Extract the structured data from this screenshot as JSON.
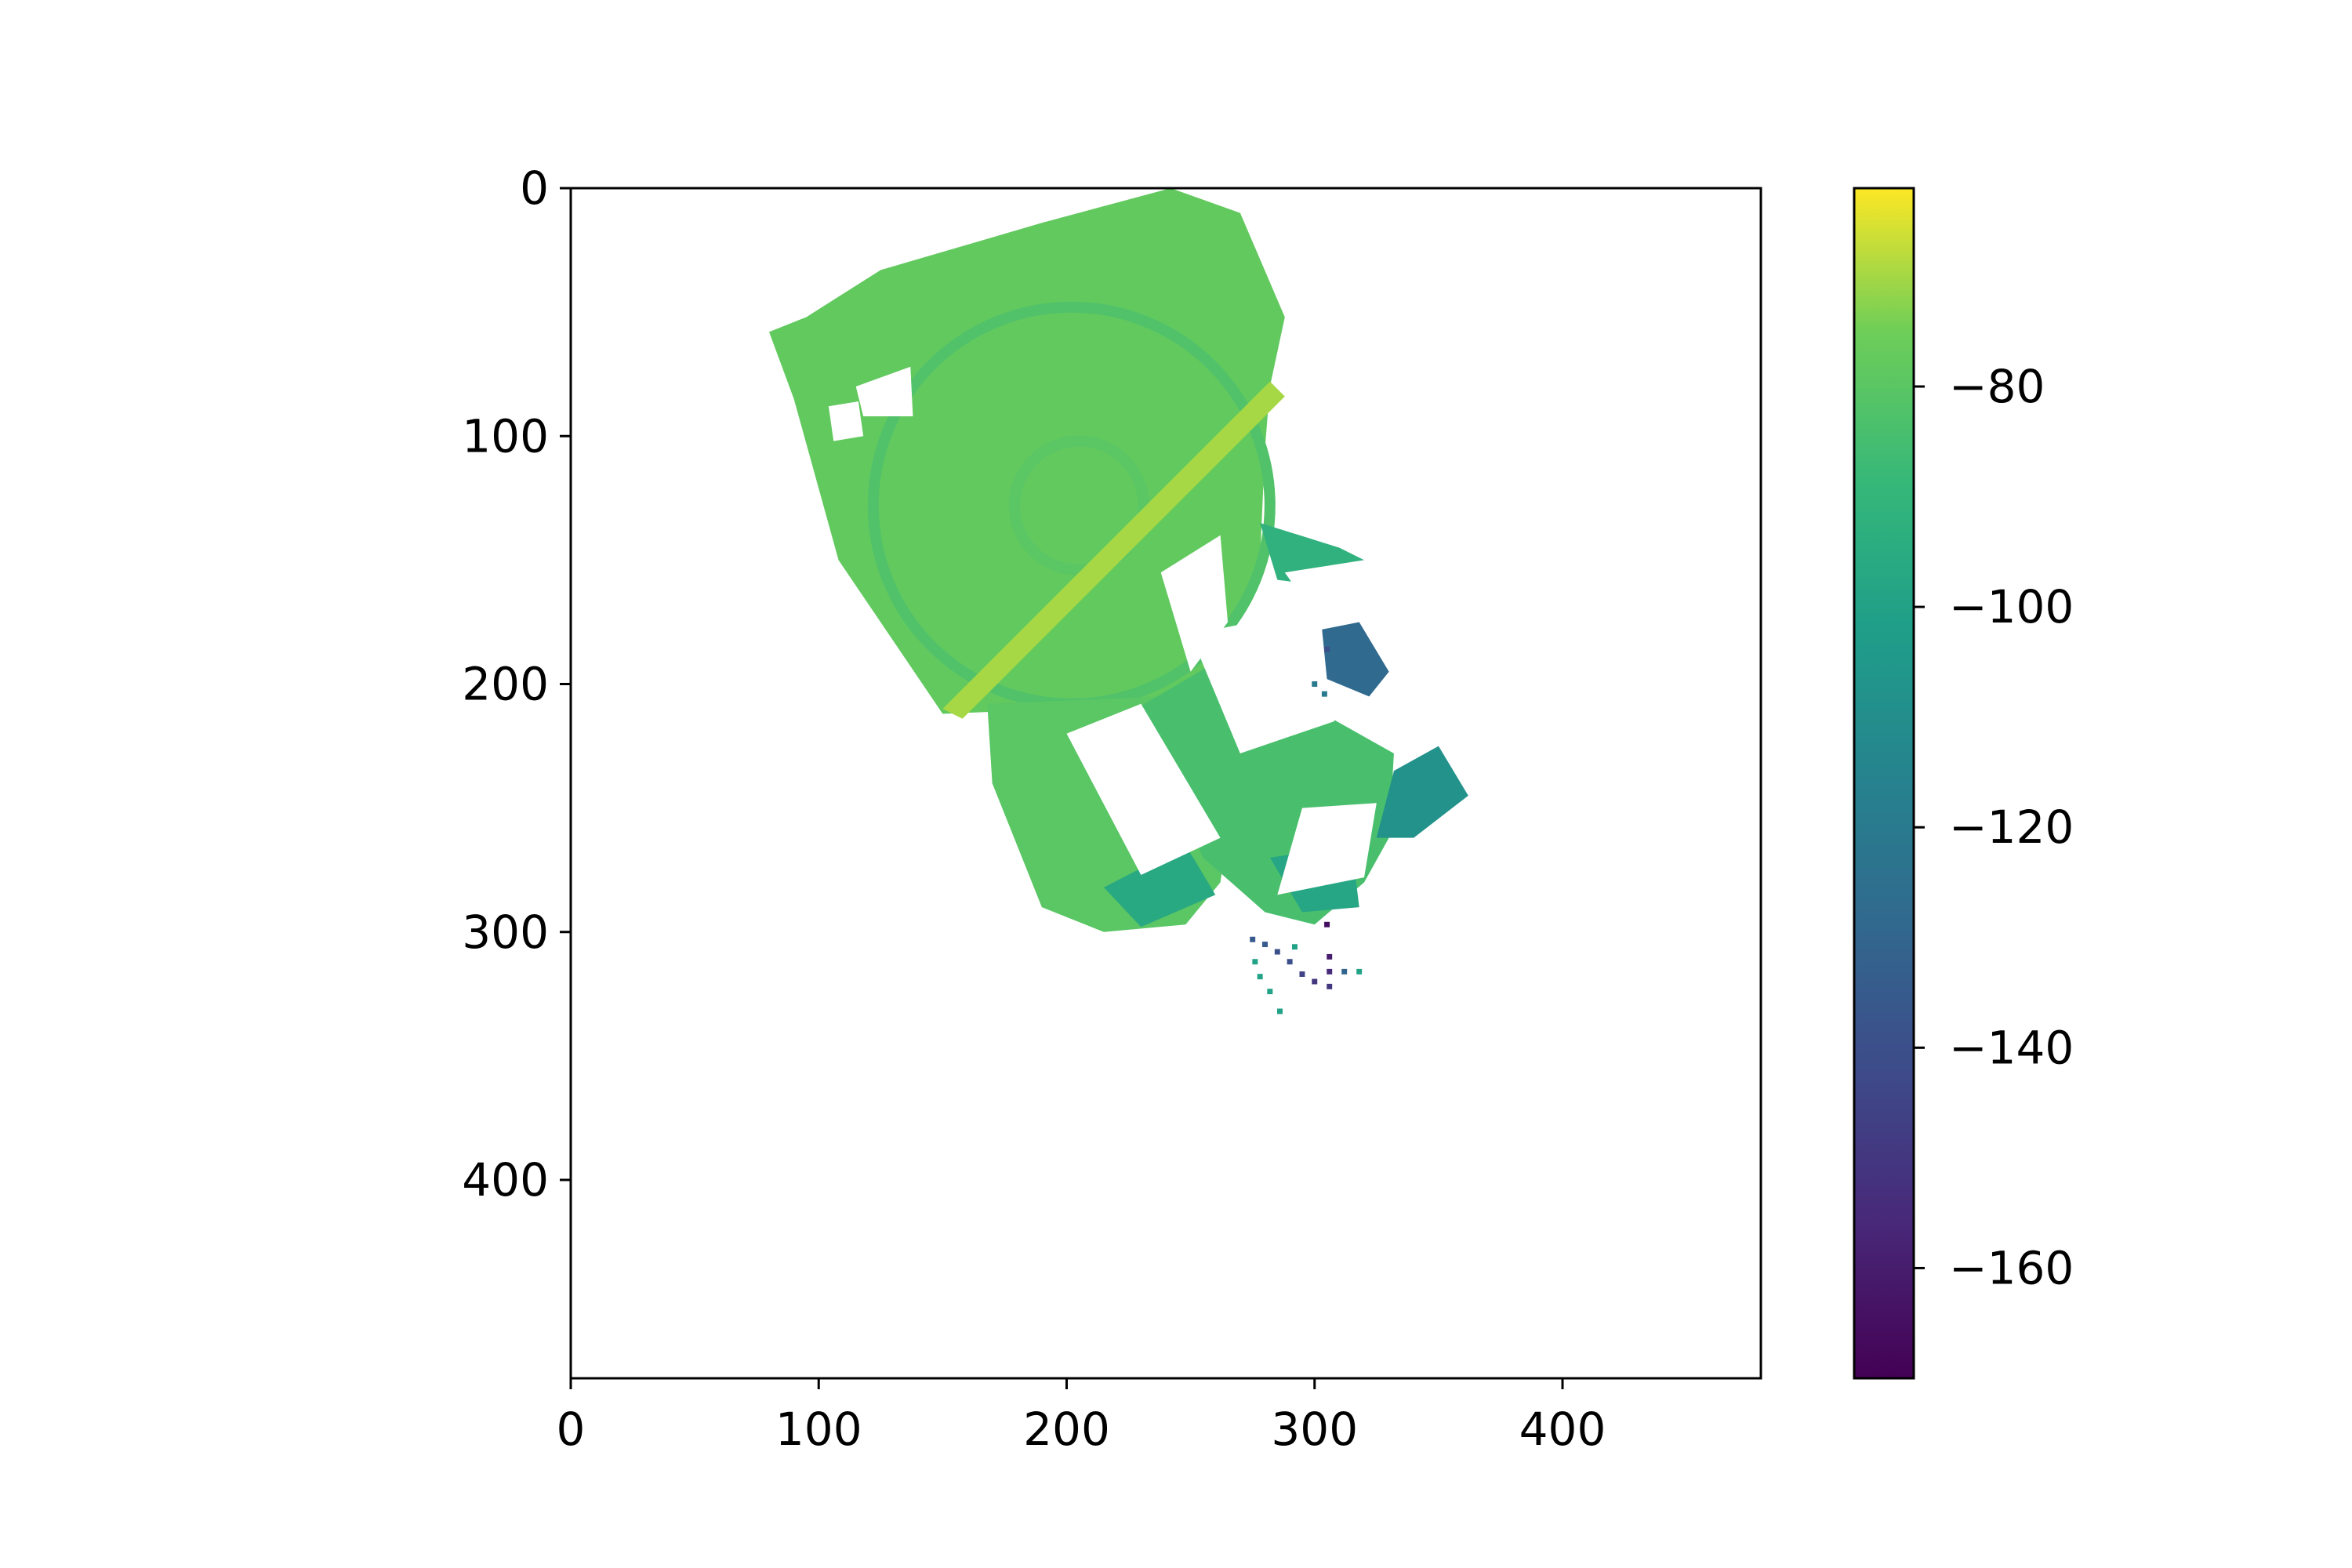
{
  "chart_data": {
    "type": "heatmap",
    "title": "",
    "xlabel": "",
    "ylabel": "",
    "xlim": [
      0,
      480
    ],
    "ylim": [
      480,
      0
    ],
    "x_ticks": [
      0,
      100,
      200,
      300,
      400
    ],
    "y_ticks": [
      0,
      100,
      200,
      300,
      400
    ],
    "x_tick_labels": [
      "0",
      "100",
      "200",
      "300",
      "400"
    ],
    "y_tick_labels": [
      "0",
      "100",
      "200",
      "300",
      "400"
    ],
    "grid": false,
    "colormap": "viridis",
    "colorbar": {
      "range": [
        -170,
        -62
      ],
      "ticks": [
        -80,
        -100,
        -120,
        -140,
        -160
      ],
      "tick_labels": [
        "−80",
        "−100",
        "−120",
        "−140",
        "−160"
      ]
    },
    "empty_value_color": "#ffffff",
    "regions": [
      {
        "name": "main-block",
        "value": -78,
        "polygon": [
          [
            242,
            0
          ],
          [
            270,
            10
          ],
          [
            288,
            52
          ],
          [
            282,
            80
          ],
          [
            280,
            105
          ],
          [
            278,
            150
          ],
          [
            268,
            172
          ],
          [
            248,
            208
          ],
          [
            222,
            218
          ],
          [
            198,
            210
          ],
          [
            150,
            212
          ],
          [
            108,
            150
          ],
          [
            90,
            85
          ],
          [
            80,
            58
          ],
          [
            95,
            52
          ],
          [
            125,
            33
          ],
          [
            190,
            14
          ]
        ]
      },
      {
        "name": "ring-outer",
        "value": -82,
        "ellipse": [
          202,
          128,
          80,
          80
        ]
      },
      {
        "name": "ring-inner",
        "value": -80,
        "ellipse": [
          205,
          128,
          26,
          26
        ]
      },
      {
        "name": "diagonal-band",
        "value": -70,
        "polygon": [
          [
            150,
            210
          ],
          [
            282,
            78
          ],
          [
            288,
            84
          ],
          [
            158,
            214
          ]
        ]
      },
      {
        "name": "lower-left-block",
        "value": -80,
        "polygon": [
          [
            168,
            208
          ],
          [
            240,
            205
          ],
          [
            268,
            240
          ],
          [
            262,
            280
          ],
          [
            248,
            297
          ],
          [
            215,
            300
          ],
          [
            190,
            290
          ],
          [
            170,
            240
          ]
        ]
      },
      {
        "name": "lower-right-block",
        "value": -84,
        "polygon": [
          [
            228,
            210
          ],
          [
            262,
            190
          ],
          [
            300,
            210
          ],
          [
            332,
            228
          ],
          [
            330,
            262
          ],
          [
            320,
            280
          ],
          [
            300,
            297
          ],
          [
            280,
            292
          ],
          [
            255,
            270
          ],
          [
            240,
            235
          ]
        ]
      },
      {
        "name": "right-lobe",
        "value": -92,
        "polygon": [
          [
            278,
            135
          ],
          [
            310,
            145
          ],
          [
            320,
            150
          ],
          [
            302,
            160
          ],
          [
            285,
            158
          ]
        ]
      },
      {
        "name": "far-right-wedge",
        "value": -108,
        "polygon": [
          [
            332,
            235
          ],
          [
            350,
            225
          ],
          [
            362,
            245
          ],
          [
            340,
            262
          ],
          [
            325,
            262
          ]
        ]
      },
      {
        "name": "dark-cluster",
        "value": -128,
        "polygon": [
          [
            303,
            178
          ],
          [
            318,
            175
          ],
          [
            330,
            195
          ],
          [
            322,
            205
          ],
          [
            305,
            198
          ]
        ]
      },
      {
        "name": "bottom-green-strip",
        "value": -98,
        "polygon": [
          [
            282,
            270
          ],
          [
            315,
            265
          ],
          [
            318,
            290
          ],
          [
            295,
            292
          ]
        ]
      },
      {
        "name": "bottom-left-green",
        "value": -96,
        "polygon": [
          [
            215,
            282
          ],
          [
            248,
            265
          ],
          [
            260,
            285
          ],
          [
            230,
            298
          ]
        ]
      }
    ],
    "holes": [
      {
        "polygon": [
          [
            200,
            220
          ],
          [
            230,
            208
          ],
          [
            262,
            262
          ],
          [
            230,
            277
          ]
        ]
      },
      {
        "polygon": [
          [
            238,
            155
          ],
          [
            262,
            140
          ],
          [
            265,
            175
          ],
          [
            250,
            195
          ]
        ]
      },
      {
        "polygon": [
          [
            250,
            180
          ],
          [
            300,
            170
          ],
          [
            308,
            215
          ],
          [
            270,
            228
          ]
        ]
      },
      {
        "polygon": [
          [
            295,
            250
          ],
          [
            325,
            248
          ],
          [
            320,
            278
          ],
          [
            285,
            285
          ]
        ]
      },
      {
        "polygon": [
          [
            288,
            155
          ],
          [
            320,
            150
          ],
          [
            320,
            172
          ],
          [
            300,
            172
          ]
        ]
      },
      {
        "polygon": [
          [
            115,
            80
          ],
          [
            137,
            72
          ],
          [
            138,
            92
          ],
          [
            118,
            92
          ]
        ]
      },
      {
        "polygon": [
          [
            104,
            88
          ],
          [
            116,
            86
          ],
          [
            118,
            100
          ],
          [
            106,
            102
          ]
        ]
      }
    ],
    "scatter_points": [
      {
        "x": 275,
        "y": 303,
        "value": -135
      },
      {
        "x": 280,
        "y": 305,
        "value": -135
      },
      {
        "x": 285,
        "y": 308,
        "value": -140
      },
      {
        "x": 290,
        "y": 312,
        "value": -140
      },
      {
        "x": 295,
        "y": 317,
        "value": -145
      },
      {
        "x": 300,
        "y": 320,
        "value": -150
      },
      {
        "x": 305,
        "y": 297,
        "value": -165
      },
      {
        "x": 306,
        "y": 310,
        "value": -160
      },
      {
        "x": 306,
        "y": 316,
        "value": -155
      },
      {
        "x": 306,
        "y": 322,
        "value": -150
      },
      {
        "x": 312,
        "y": 316,
        "value": -130
      },
      {
        "x": 318,
        "y": 316,
        "value": -100
      },
      {
        "x": 276,
        "y": 312,
        "value": -100
      },
      {
        "x": 278,
        "y": 318,
        "value": -100
      },
      {
        "x": 282,
        "y": 324,
        "value": -100
      },
      {
        "x": 286,
        "y": 332,
        "value": -100
      },
      {
        "x": 292,
        "y": 306,
        "value": -100
      },
      {
        "x": 305,
        "y": 186,
        "value": -140
      },
      {
        "x": 300,
        "y": 200,
        "value": -120
      },
      {
        "x": 304,
        "y": 204,
        "value": -120
      }
    ]
  }
}
